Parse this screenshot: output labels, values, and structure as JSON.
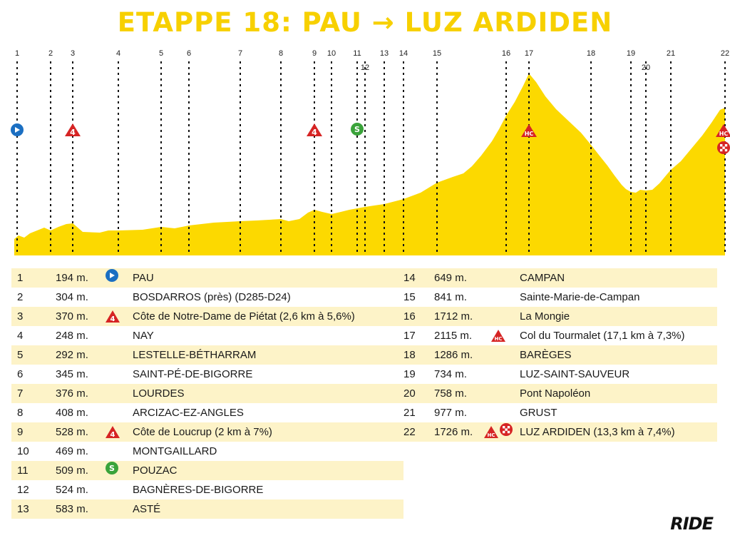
{
  "title": "ETAPPE 18: PAU → LUZ ARDIDEN",
  "brand": "RIDE",
  "colors": {
    "profile_fill": "#fcd900",
    "title": "#f7d000",
    "row_shade": "#fdf3c8",
    "cat_marker": "#d62424",
    "sprint_marker": "#3aa33a",
    "start_marker": "#1b6fc2"
  },
  "waypoints": [
    {
      "no": "1",
      "alt": "194 m.",
      "name": "PAU",
      "marker": "start"
    },
    {
      "no": "2",
      "alt": "304 m.",
      "name": "BOSDARROS (près) (D285-D24)",
      "marker": ""
    },
    {
      "no": "3",
      "alt": "370 m.",
      "name": "Côte de Notre-Dame de Piétat (2,6 km à 5,6%)",
      "marker": "cat4"
    },
    {
      "no": "4",
      "alt": "248 m.",
      "name": "NAY",
      "marker": ""
    },
    {
      "no": "5",
      "alt": "292 m.",
      "name": "LESTELLE-BÉTHARRAM",
      "marker": ""
    },
    {
      "no": "6",
      "alt": "345 m.",
      "name": "SAINT-PÉ-DE-BIGORRE",
      "marker": ""
    },
    {
      "no": "7",
      "alt": "376 m.",
      "name": "LOURDES",
      "marker": ""
    },
    {
      "no": "8",
      "alt": "408 m.",
      "name": "ARCIZAC-EZ-ANGLES",
      "marker": ""
    },
    {
      "no": "9",
      "alt": "528 m.",
      "name": "Côte de Loucrup (2 km à 7%)",
      "marker": "cat4"
    },
    {
      "no": "10",
      "alt": "469 m.",
      "name": "MONTGAILLARD",
      "marker": ""
    },
    {
      "no": "11",
      "alt": "509 m.",
      "name": "POUZAC",
      "marker": "sprint"
    },
    {
      "no": "12",
      "alt": "524 m.",
      "name": "BAGNÈRES-DE-BIGORRE",
      "marker": ""
    },
    {
      "no": "13",
      "alt": "583 m.",
      "name": "ASTÉ",
      "marker": ""
    },
    {
      "no": "14",
      "alt": "649 m.",
      "name": "CAMPAN",
      "marker": ""
    },
    {
      "no": "15",
      "alt": "841 m.",
      "name": "Sainte-Marie-de-Campan",
      "marker": ""
    },
    {
      "no": "16",
      "alt": "1712 m.",
      "name": "La Mongie",
      "marker": ""
    },
    {
      "no": "17",
      "alt": "2115 m.",
      "name": "Col du Tourmalet (17,1 km à 7,3%)",
      "marker": "hc"
    },
    {
      "no": "18",
      "alt": "1286 m.",
      "name": "BARÈGES",
      "marker": ""
    },
    {
      "no": "19",
      "alt": "734 m.",
      "name": "LUZ-SAINT-SAUVEUR",
      "marker": ""
    },
    {
      "no": "20",
      "alt": "758 m.",
      "name": "Pont Napoléon",
      "marker": ""
    },
    {
      "no": "21",
      "alt": "977 m.",
      "name": "GRUST",
      "marker": ""
    },
    {
      "no": "22",
      "alt": "1726 m.",
      "name": "LUZ ARDIDEN (13,3 km à 7,4%)",
      "marker": "hc-finish"
    }
  ],
  "marker_labels": {
    "cat4": "4",
    "hc": "HC",
    "sprint": "S"
  }
}
